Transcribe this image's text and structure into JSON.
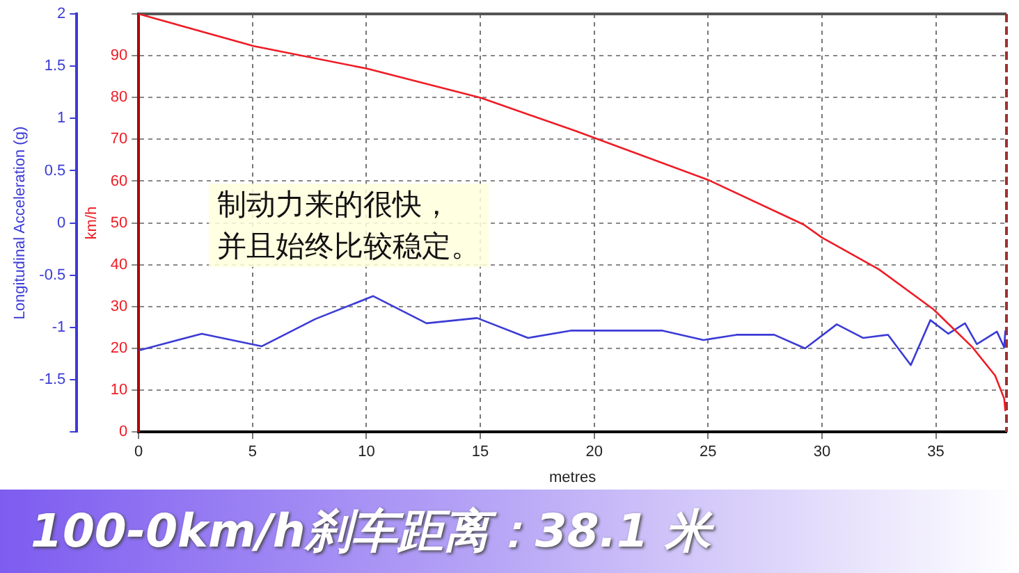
{
  "chart_data": {
    "type": "line",
    "xlabel": "metres",
    "ylabel": "Longitudinal Acceleration (g)",
    "y2label": "km/h",
    "xlim": [
      0,
      38.1
    ],
    "xticks": [
      0,
      5,
      10,
      15,
      20,
      25,
      30,
      35
    ],
    "ylim": [
      -2,
      2
    ],
    "yticks": [
      2,
      1.5,
      1,
      0.5,
      0,
      -0.5,
      -1,
      -1.5,
      {
        "value": -2,
        "label": null
      }
    ],
    "y2lim": [
      0,
      100
    ],
    "y2ticks": [
      0,
      10,
      20,
      30,
      40,
      50,
      60,
      70,
      80,
      90,
      {
        "value": 100,
        "label": null
      }
    ],
    "grid": true,
    "legend": false,
    "marker": "none",
    "line_style": "solid",
    "series": [
      {
        "color": "#ee1c25",
        "axis": "y2",
        "x": [
          0,
          5.05,
          10.04,
          15.03,
          19.18,
          25.0,
          29.2,
          30.0,
          32.5,
          34.9,
          36.6,
          37.6,
          38.0,
          38.05
        ],
        "values": [
          100,
          92.3,
          86.9,
          79.9,
          72.0,
          60.3,
          49.6,
          46.5,
          38.9,
          29.3,
          20.3,
          13.5,
          8,
          5
        ]
      },
      {
        "color": "#3b3bd6",
        "axis": "y",
        "x": [
          0,
          2.77,
          5.41,
          7.75,
          10.3,
          12.64,
          14.86,
          17.1,
          18.97,
          23.0,
          24.8,
          26.25,
          27.9,
          29.26,
          30.65,
          31.8,
          32.9,
          33.9,
          34.76,
          35.55,
          36.28,
          36.8,
          37.68,
          38.0,
          38.05
        ],
        "values": [
          -1.22,
          -1.06,
          -1.18,
          -0.92,
          -0.7,
          -0.96,
          -0.91,
          -1.1,
          -1.03,
          -1.03,
          -1.12,
          -1.07,
          -1.07,
          -1.2,
          -0.97,
          -1.1,
          -1.07,
          -1.36,
          -0.93,
          -1.06,
          -0.96,
          -1.16,
          -1.04,
          -1.19,
          -1.03
        ]
      }
    ],
    "annotations": [
      "制动力来的很快，",
      "并且始终比较稳定。",
      "100-0km/h刹车距离：38.1 米"
    ]
  }
}
